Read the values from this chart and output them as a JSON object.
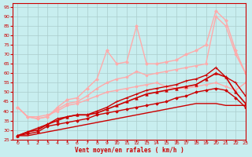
{
  "bg_color": "#c8eeef",
  "grid_color": "#aacccc",
  "xlabel": "Vent moyen/en rafales ( km/h )",
  "xlabel_color": "#cc0000",
  "tick_color": "#cc0000",
  "xlim": [
    -0.5,
    23
  ],
  "ylim": [
    25,
    97
  ],
  "yticks": [
    25,
    30,
    35,
    40,
    45,
    50,
    55,
    60,
    65,
    70,
    75,
    80,
    85,
    90,
    95
  ],
  "xticks": [
    0,
    1,
    2,
    3,
    4,
    5,
    6,
    7,
    8,
    9,
    10,
    11,
    12,
    13,
    14,
    15,
    16,
    17,
    18,
    19,
    20,
    21,
    22,
    23
  ],
  "lines": [
    {
      "x": [
        0,
        1,
        2,
        3,
        4,
        5,
        6,
        7,
        8,
        9,
        10,
        11,
        12,
        13,
        14,
        15,
        16,
        17,
        18,
        19,
        20,
        21,
        22,
        23
      ],
      "y": [
        27,
        27,
        28,
        29,
        30,
        31,
        32,
        33,
        34,
        35,
        36,
        37,
        38,
        39,
        40,
        41,
        42,
        43,
        44,
        44,
        44,
        43,
        43,
        43
      ],
      "color": "#cc0000",
      "lw": 1.0,
      "marker": null,
      "zorder": 3
    },
    {
      "x": [
        0,
        1,
        2,
        3,
        4,
        5,
        6,
        7,
        8,
        9,
        10,
        11,
        12,
        13,
        14,
        15,
        16,
        17,
        18,
        19,
        20,
        21,
        22,
        23
      ],
      "y": [
        27,
        28,
        29,
        32,
        33,
        34,
        35,
        36,
        38,
        39,
        40,
        41,
        42,
        43,
        44,
        45,
        47,
        48,
        50,
        51,
        52,
        51,
        47,
        42
      ],
      "color": "#cc0000",
      "lw": 1.0,
      "marker": "D",
      "ms": 1.8,
      "zorder": 4
    },
    {
      "x": [
        0,
        1,
        2,
        3,
        4,
        5,
        6,
        7,
        8,
        9,
        10,
        11,
        12,
        13,
        14,
        15,
        16,
        17,
        18,
        19,
        20,
        21,
        22,
        23
      ],
      "y": [
        27,
        29,
        30,
        33,
        35,
        37,
        38,
        38,
        39,
        41,
        43,
        45,
        47,
        49,
        50,
        51,
        52,
        53,
        54,
        57,
        60,
        58,
        50,
        44
      ],
      "color": "#cc0000",
      "lw": 1.2,
      "marker": "^",
      "ms": 2.5,
      "zorder": 5
    },
    {
      "x": [
        0,
        1,
        2,
        3,
        4,
        5,
        6,
        7,
        8,
        9,
        10,
        11,
        12,
        13,
        14,
        15,
        16,
        17,
        18,
        19,
        20,
        21,
        22,
        23
      ],
      "y": [
        27,
        29,
        31,
        33,
        36,
        37,
        38,
        38,
        40,
        42,
        45,
        47,
        49,
        51,
        52,
        53,
        54,
        56,
        57,
        59,
        63,
        58,
        55,
        48
      ],
      "color": "#cc0000",
      "lw": 1.0,
      "marker": "+",
      "ms": 3,
      "zorder": 4
    },
    {
      "x": [
        0,
        1,
        2,
        3,
        4,
        5,
        6,
        7,
        8,
        9,
        10,
        11,
        12,
        13,
        14,
        15,
        16,
        17,
        18,
        19,
        20,
        21,
        22,
        23
      ],
      "y": [
        42,
        37,
        37,
        38,
        40,
        43,
        44,
        46,
        48,
        50,
        51,
        52,
        53,
        54,
        55,
        53,
        52,
        52,
        53,
        54,
        55,
        53,
        51,
        55
      ],
      "color": "#ffaaaa",
      "lw": 1.0,
      "marker": "o",
      "ms": 2,
      "zorder": 2
    },
    {
      "x": [
        0,
        1,
        2,
        3,
        4,
        5,
        6,
        7,
        8,
        9,
        10,
        11,
        12,
        13,
        14,
        15,
        16,
        17,
        18,
        19,
        20,
        21,
        22,
        23
      ],
      "y": [
        42,
        37,
        36,
        37,
        41,
        44,
        45,
        48,
        52,
        55,
        57,
        58,
        61,
        59,
        60,
        61,
        62,
        63,
        64,
        65,
        90,
        85,
        70,
        60
      ],
      "color": "#ffaaaa",
      "lw": 1.0,
      "marker": "o",
      "ms": 2,
      "zorder": 2
    },
    {
      "x": [
        0,
        1,
        2,
        3,
        4,
        5,
        6,
        7,
        8,
        9,
        10,
        11,
        12,
        13,
        14,
        15,
        16,
        17,
        18,
        19,
        20,
        21,
        22,
        23
      ],
      "y": [
        42,
        37,
        36,
        37,
        42,
        46,
        47,
        52,
        57,
        72,
        65,
        66,
        85,
        65,
        65,
        66,
        67,
        70,
        72,
        75,
        93,
        88,
        72,
        60
      ],
      "color": "#ffaaaa",
      "lw": 1.0,
      "marker": "D",
      "ms": 2,
      "zorder": 2
    }
  ]
}
